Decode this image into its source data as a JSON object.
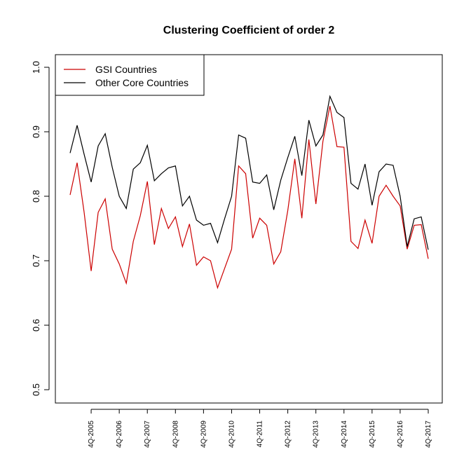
{
  "chart_data": {
    "type": "line",
    "title": "Clustering Coefficient of order 2",
    "xlabel": "",
    "ylabel": "",
    "ylim": [
      0.5,
      1.0
    ],
    "yticks": [
      "0.5",
      "0.6",
      "0.7",
      "0.8",
      "0.9",
      "1.0"
    ],
    "x_tick_labels": [
      "4Q-2005",
      "4Q-2006",
      "4Q-2007",
      "4Q-2008",
      "4Q-2009",
      "4Q-2010",
      "4Q-2011",
      "4Q-2012",
      "4Q-2013",
      "4Q-2014",
      "4Q-2015",
      "4Q-2016",
      "4Q-2017"
    ],
    "x_tick_index": [
      3,
      7,
      11,
      15,
      19,
      23,
      27,
      31,
      35,
      39,
      43,
      47,
      51
    ],
    "x": [
      0,
      1,
      2,
      3,
      4,
      5,
      6,
      7,
      8,
      9,
      10,
      11,
      12,
      13,
      14,
      15,
      16,
      17,
      18,
      19,
      20,
      21,
      22,
      23,
      24,
      25,
      26,
      27,
      28,
      29,
      30,
      31,
      32,
      33,
      34,
      35,
      36,
      37,
      38,
      39,
      40,
      41,
      42,
      43,
      44,
      45,
      46,
      47,
      48,
      49,
      50,
      51
    ],
    "legend_position": "top-left",
    "series": [
      {
        "name": "GSI Countries",
        "color": "#cc0000",
        "values": [
          0.802,
          0.852,
          0.775,
          0.684,
          0.775,
          0.796,
          0.718,
          0.695,
          0.665,
          0.73,
          0.77,
          0.823,
          0.725,
          0.781,
          0.75,
          0.768,
          0.722,
          0.757,
          0.693,
          0.706,
          0.7,
          0.658,
          0.688,
          0.718,
          0.847,
          0.835,
          0.735,
          0.766,
          0.755,
          0.695,
          0.714,
          0.778,
          0.858,
          0.766,
          0.888,
          0.788,
          0.885,
          0.94,
          0.877,
          0.876,
          0.73,
          0.719,
          0.763,
          0.727,
          0.8,
          0.817,
          0.8,
          0.785,
          0.718,
          0.755,
          0.756,
          0.703
        ]
      },
      {
        "name": "Other Core Countries",
        "color": "#000000",
        "values": [
          0.867,
          0.91,
          0.865,
          0.822,
          0.878,
          0.897,
          0.845,
          0.8,
          0.781,
          0.842,
          0.852,
          0.879,
          0.824,
          0.835,
          0.844,
          0.847,
          0.785,
          0.8,
          0.763,
          0.755,
          0.758,
          0.728,
          0.765,
          0.8,
          0.895,
          0.89,
          0.822,
          0.82,
          0.833,
          0.779,
          0.825,
          0.86,
          0.893,
          0.832,
          0.918,
          0.878,
          0.895,
          0.955,
          0.93,
          0.922,
          0.82,
          0.811,
          0.85,
          0.786,
          0.838,
          0.85,
          0.848,
          0.8,
          0.722,
          0.765,
          0.768,
          0.717
        ]
      }
    ]
  }
}
